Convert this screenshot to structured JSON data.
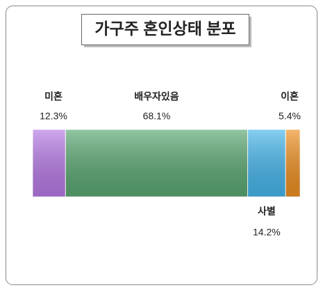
{
  "chart_data": {
    "type": "stacked-bar-100",
    "title": "가구주 혼인상태 분포",
    "categories": [
      "미혼",
      "배우자있음",
      "사별",
      "이혼"
    ],
    "values": [
      12.3,
      68.1,
      14.2,
      5.4
    ],
    "value_labels": [
      "12.3%",
      "68.1%",
      "14.2%",
      "5.4%"
    ],
    "colors": [
      "#b77ae6",
      "#5aa872",
      "#45b6ec",
      "#ee9020"
    ],
    "xlim": [
      0,
      100
    ]
  }
}
